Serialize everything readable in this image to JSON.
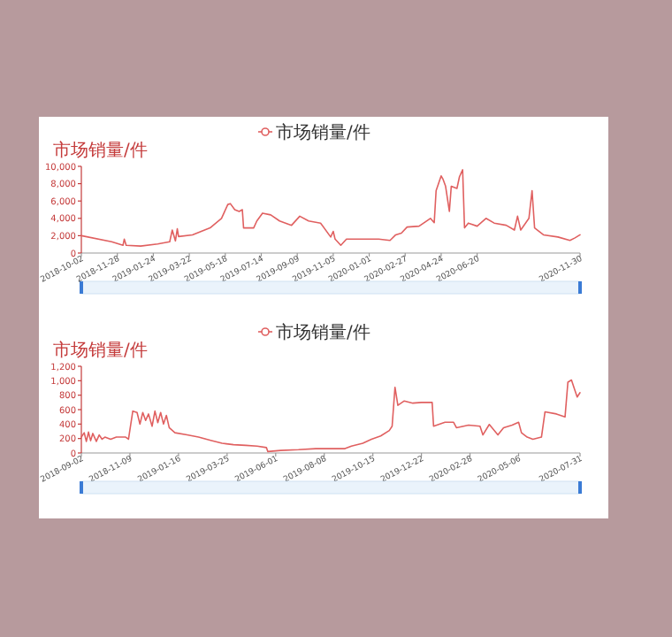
{
  "chart_data": [
    {
      "type": "line",
      "ylabel": "市场销量/件",
      "legend": "top",
      "xlim": [
        "2018-10-02",
        "2020-11-30"
      ],
      "ylim": [
        0,
        10000
      ],
      "xticks": [
        "2018-10-02",
        "2018-11-28",
        "2019-01-24",
        "2019-03-22",
        "2019-05-18",
        "2019-07-14",
        "2019-09-09",
        "2019-11-05",
        "2020-01-01",
        "2020-02-27",
        "2020-04-24",
        "2020-06-20",
        "2020-11-30"
      ],
      "yticks": [
        0,
        {
          "value": 2000,
          "label": "2,000"
        },
        {
          "value": 4000,
          "label": "4,000"
        },
        {
          "value": 6000,
          "label": "6,000"
        },
        {
          "value": 8000,
          "label": "8,000"
        },
        {
          "value": 10000,
          "label": "10,000"
        }
      ],
      "x": [
        "2018-10-02",
        "2018-11-19",
        "2018-12-07",
        "2018-12-09",
        "2018-12-12",
        "2019-01-04",
        "2019-01-31",
        "2019-02-19",
        "2019-02-23",
        "2019-02-28",
        "2019-03-03",
        "2019-03-05",
        "2019-03-27",
        "2019-04-24",
        "2019-05-12",
        "2019-05-22",
        "2019-05-26",
        "2019-06-02",
        "2019-06-09",
        "2019-06-14",
        "2019-06-16",
        "2019-07-02",
        "2019-07-07",
        "2019-07-16",
        "2019-07-29",
        "2019-08-12",
        "2019-08-31",
        "2019-09-13",
        "2019-09-27",
        "2019-10-16",
        "2019-11-01",
        "2019-11-05",
        "2019-11-08",
        "2019-11-17",
        "2019-11-26",
        "2019-12-10",
        "2020-01-16",
        "2020-02-03",
        "2020-02-12",
        "2020-02-21",
        "2020-03-01",
        "2020-03-20",
        "2020-04-07",
        "2020-04-13",
        "2020-04-16",
        "2020-04-24",
        "2020-04-27",
        "2020-05-01",
        "2020-05-07",
        "2020-05-10",
        "2020-05-19",
        "2020-05-23",
        "2020-05-28",
        "2020-05-31",
        "2020-06-06",
        "2020-06-20",
        "2020-07-04",
        "2020-07-17",
        "2020-08-05",
        "2020-08-18",
        "2020-08-23",
        "2020-08-28",
        "2020-09-10",
        "2020-09-15",
        "2020-09-19",
        "2020-10-03",
        "2020-10-26",
        "2020-11-14",
        "2020-11-22",
        "2020-11-30"
      ],
      "series": [
        {
          "name": "市场销量/件",
          "color": "#e06060",
          "values": [
            2000,
            1300,
            900,
            1600,
            900,
            800,
            1050,
            1300,
            2650,
            1400,
            2800,
            1900,
            2100,
            2900,
            4000,
            5600,
            5700,
            5000,
            4800,
            5000,
            2900,
            2900,
            3700,
            4600,
            4400,
            3700,
            3200,
            4250,
            3700,
            3450,
            1850,
            2500,
            1600,
            900,
            1600,
            1600,
            1600,
            1450,
            2100,
            2300,
            3000,
            3100,
            4000,
            3500,
            7200,
            8900,
            8500,
            7700,
            4800,
            7700,
            7450,
            8800,
            9600,
            2900,
            3450,
            3100,
            4000,
            3450,
            3200,
            2650,
            4250,
            2650,
            4000,
            7200,
            2900,
            2100,
            1850,
            1450,
            1750,
            2100
          ]
        }
      ]
    },
    {
      "type": "line",
      "ylabel": "市场销量/件",
      "legend": "top",
      "xlim": [
        "2018-09-02",
        "2020-07-31"
      ],
      "ylim": [
        0,
        1200
      ],
      "xticks": [
        "2018-09-02",
        "2018-11-09",
        "2019-01-16",
        "2019-03-25",
        "2019-06-01",
        "2019-08-08",
        "2019-10-15",
        "2019-12-22",
        "2020-02-28",
        "2020-05-06",
        "2020-07-31"
      ],
      "yticks": [
        0,
        200,
        400,
        600,
        800,
        {
          "value": 1000,
          "label": "1,000"
        },
        {
          "value": 1200,
          "label": "1,200"
        }
      ],
      "x": [
        "2018-09-02",
        "2018-09-06",
        "2018-09-09",
        "2018-09-12",
        "2018-09-15",
        "2018-09-18",
        "2018-09-23",
        "2018-09-27",
        "2018-10-01",
        "2018-10-05",
        "2018-10-13",
        "2018-10-21",
        "2018-11-03",
        "2018-11-07",
        "2018-11-13",
        "2018-11-19",
        "2018-11-23",
        "2018-11-27",
        "2018-12-01",
        "2018-12-05",
        "2018-12-10",
        "2018-12-14",
        "2018-12-18",
        "2018-12-22",
        "2018-12-26",
        "2018-12-30",
        "2019-01-03",
        "2019-01-11",
        "2019-01-28",
        "2019-02-13",
        "2019-03-02",
        "2019-03-18",
        "2019-04-03",
        "2019-04-20",
        "2019-05-06",
        "2019-05-19",
        "2019-05-21",
        "2019-06-08",
        "2019-07-03",
        "2019-07-27",
        "2019-08-21",
        "2019-09-06",
        "2019-09-15",
        "2019-10-01",
        "2019-10-13",
        "2019-10-26",
        "2019-11-07",
        "2019-11-11",
        "2019-11-15",
        "2019-11-19",
        "2019-11-28",
        "2019-12-10",
        "2019-12-22",
        "2020-01-06",
        "2020-01-08",
        "2020-01-24",
        "2020-02-05",
        "2020-02-09",
        "2020-02-26",
        "2020-03-13",
        "2020-03-17",
        "2020-03-26",
        "2020-04-07",
        "2020-04-15",
        "2020-04-27",
        "2020-05-06",
        "2020-05-10",
        "2020-05-18",
        "2020-05-26",
        "2020-06-07",
        "2020-06-12",
        "2020-06-28",
        "2020-07-10",
        "2020-07-14",
        "2020-07-19",
        "2020-07-23",
        "2020-07-27",
        "2020-07-31"
      ],
      "series": [
        {
          "name": "市场销量/件",
          "color": "#e06060",
          "values": [
            220,
            280,
            160,
            290,
            170,
            270,
            160,
            250,
            190,
            220,
            190,
            220,
            220,
            190,
            580,
            560,
            400,
            560,
            450,
            540,
            370,
            580,
            420,
            560,
            400,
            520,
            350,
            280,
            250,
            220,
            175,
            135,
            115,
            105,
            95,
            75,
            20,
            35,
            45,
            60,
            60,
            60,
            95,
            135,
            190,
            235,
            310,
            370,
            910,
            660,
            720,
            690,
            700,
            700,
            370,
            425,
            425,
            350,
            385,
            370,
            250,
            395,
            250,
            350,
            385,
            425,
            280,
            220,
            190,
            220,
            570,
            540,
            500,
            980,
            1010,
            890,
            775,
            835
          ]
        }
      ]
    }
  ]
}
